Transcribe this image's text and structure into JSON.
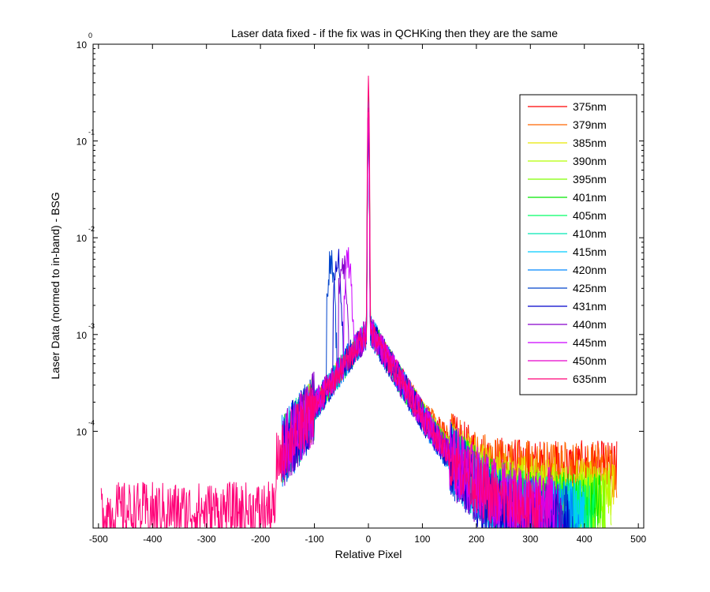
{
  "chart_data": {
    "type": "line",
    "title": "Laser data fixed - if the fix was in QCHKing then they are the same",
    "xlabel": "Relative Pixel",
    "ylabel": "Laser Data (normed to in-band) - BSG",
    "xlim": [
      -510,
      510
    ],
    "ylim": [
      1e-05,
      1
    ],
    "yscale": "log",
    "grid": false,
    "legend_position": "top-right",
    "x_ticks": [
      -500,
      -400,
      -300,
      -200,
      -100,
      0,
      100,
      200,
      300,
      400,
      500
    ],
    "x_tick_labels": [
      "-500",
      "-400",
      "-300",
      "-200",
      "-100",
      "0",
      "100",
      "200",
      "300",
      "400",
      "500"
    ],
    "y_ticks": [
      {
        "value": 1,
        "base": "10",
        "exp": "0"
      },
      {
        "value": 0.1,
        "base": "10",
        "exp": "-1"
      },
      {
        "value": 0.01,
        "base": "10",
        "exp": "-2"
      },
      {
        "value": 0.001,
        "base": "10",
        "exp": "-3"
      },
      {
        "value": 0.0001,
        "base": "10",
        "exp": "-4"
      }
    ],
    "series": [
      {
        "name": "375nm",
        "color": "#ff0000",
        "x_min": -160,
        "x_max": 460,
        "peak": 0.22,
        "sideband_x": null,
        "sideband_y": null,
        "left_level": 1e-06,
        "right_tail": 4e-05,
        "noise": 0.5
      },
      {
        "name": "379nm",
        "color": "#ff6600",
        "x_min": -160,
        "x_max": 460,
        "peak": 0.25,
        "sideband_x": null,
        "sideband_y": null,
        "left_level": 1e-06,
        "right_tail": 4e-05,
        "noise": 0.5
      },
      {
        "name": "385nm",
        "color": "#e6e600",
        "x_min": -160,
        "x_max": 455,
        "peak": 0.24,
        "sideband_x": null,
        "sideband_y": null,
        "left_level": 1e-06,
        "right_tail": 2.5e-05,
        "noise": 0.55
      },
      {
        "name": "390nm",
        "color": "#b3ff00",
        "x_min": -160,
        "x_max": 450,
        "peak": 0.23,
        "sideband_x": null,
        "sideband_y": null,
        "left_level": 1e-06,
        "right_tail": 2e-05,
        "noise": 0.55
      },
      {
        "name": "395nm",
        "color": "#80ff00",
        "x_min": -160,
        "x_max": 440,
        "peak": 0.22,
        "sideband_x": null,
        "sideband_y": null,
        "left_level": 1e-06,
        "right_tail": 1.8e-05,
        "noise": 0.55
      },
      {
        "name": "401nm",
        "color": "#00e600",
        "x_min": -160,
        "x_max": 430,
        "peak": 0.25,
        "sideband_x": null,
        "sideband_y": null,
        "left_level": 1e-06,
        "right_tail": 1.6e-05,
        "noise": 0.6
      },
      {
        "name": "405nm",
        "color": "#00ff66",
        "x_min": -160,
        "x_max": 420,
        "peak": 0.24,
        "sideband_x": null,
        "sideband_y": null,
        "left_level": 1e-06,
        "right_tail": 1.5e-05,
        "noise": 0.6
      },
      {
        "name": "410nm",
        "color": "#00e6b3",
        "x_min": -160,
        "x_max": 410,
        "peak": 0.23,
        "sideband_x": null,
        "sideband_y": null,
        "left_level": 1e-06,
        "right_tail": 1.4e-05,
        "noise": 0.6
      },
      {
        "name": "415nm",
        "color": "#00ccff",
        "x_min": -160,
        "x_max": 400,
        "peak": 0.22,
        "sideband_x": null,
        "sideband_y": null,
        "left_level": 1e-06,
        "right_tail": 1.3e-05,
        "noise": 0.6
      },
      {
        "name": "420nm",
        "color": "#0088ff",
        "x_min": -160,
        "x_max": 390,
        "peak": 0.2,
        "sideband_x": null,
        "sideband_y": null,
        "left_level": 1e-06,
        "right_tail": 1.2e-05,
        "noise": 0.65
      },
      {
        "name": "425nm",
        "color": "#0044cc",
        "x_min": -160,
        "x_max": 380,
        "peak": 0.19,
        "sideband_x": -70,
        "sideband_y": 0.0055,
        "left_level": 1e-06,
        "right_tail": 1.1e-05,
        "noise": 0.65
      },
      {
        "name": "431nm",
        "color": "#0000cc",
        "x_min": -160,
        "x_max": 370,
        "peak": 0.18,
        "sideband_x": -58,
        "sideband_y": 0.0065,
        "left_level": 1e-06,
        "right_tail": 1.1e-05,
        "noise": 0.65
      },
      {
        "name": "440nm",
        "color": "#8800cc",
        "x_min": -160,
        "x_max": 360,
        "peak": 0.2,
        "sideband_x": -48,
        "sideband_y": 0.006,
        "left_level": 1e-06,
        "right_tail": 1.2e-05,
        "noise": 0.65
      },
      {
        "name": "445nm",
        "color": "#cc00ff",
        "x_min": -160,
        "x_max": 345,
        "peak": 0.21,
        "sideband_x": -38,
        "sideband_y": 0.0058,
        "left_level": 1e-06,
        "right_tail": 1.5e-05,
        "noise": 0.6
      },
      {
        "name": "450nm",
        "color": "#e600cc",
        "x_min": -160,
        "x_max": 340,
        "peak": 0.22,
        "sideband_x": null,
        "sideband_y": null,
        "left_level": 1e-06,
        "right_tail": 1.8e-05,
        "noise": 0.6
      },
      {
        "name": "635nm",
        "color": "#ff0077",
        "x_min": -495,
        "x_max": 320,
        "peak": 0.5,
        "sideband_x": null,
        "sideband_y": null,
        "left_level": 1.5e-05,
        "right_tail": 1.4e-05,
        "noise": 0.5
      }
    ]
  }
}
